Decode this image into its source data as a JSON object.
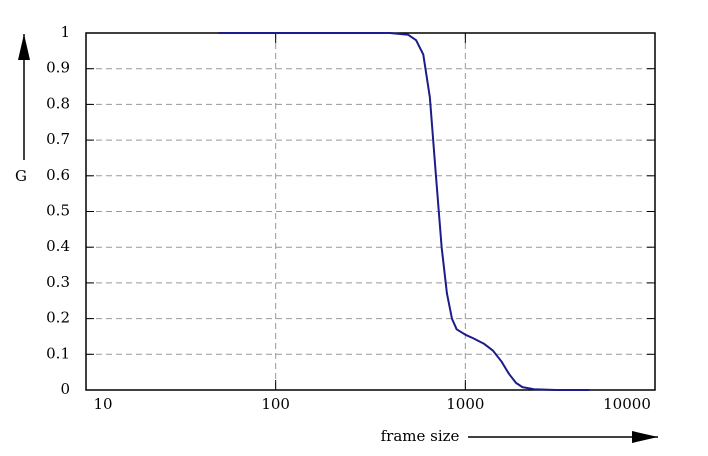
{
  "chart_data": {
    "type": "line",
    "x_label": "frame size",
    "y_label": "G",
    "xscale": "log",
    "grid": true,
    "xlim": [
      10,
      10000
    ],
    "ylim": [
      0,
      1
    ],
    "xticks": [
      10,
      100,
      1000,
      10000
    ],
    "yticks": [
      0,
      0.1,
      0.2,
      0.3,
      0.4,
      0.5,
      0.6,
      0.7,
      0.8,
      0.9,
      1
    ],
    "x": [
      50,
      100,
      200,
      400,
      500,
      550,
      600,
      650,
      700,
      750,
      800,
      850,
      900,
      1000,
      1100,
      1250,
      1400,
      1550,
      1700,
      1850,
      2000,
      2300,
      3000,
      4000,
      4500
    ],
    "series": [
      {
        "color": "#1c1c8a",
        "values": [
          1,
          1,
          1,
          1,
          0.995,
          0.98,
          0.94,
          0.82,
          0.6,
          0.4,
          0.27,
          0.2,
          0.17,
          0.155,
          0.145,
          0.13,
          0.11,
          0.08,
          0.045,
          0.02,
          0.008,
          0.002,
          0,
          0,
          0
        ]
      }
    ]
  }
}
